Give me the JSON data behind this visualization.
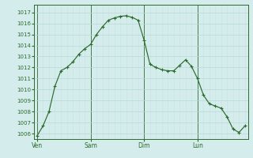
{
  "background_color": "#d4edec",
  "grid_major_color": "#b8d8d4",
  "grid_minor_color": "#c8e4e0",
  "line_color": "#2d6a2d",
  "marker_color": "#2d6a2d",
  "tick_color": "#2d6a2d",
  "spine_color": "#2d6a2d",
  "ylim": [
    1005.5,
    1017.7
  ],
  "ytick_labels": [
    "1006",
    "1007",
    "1008",
    "1009",
    "1010",
    "1011",
    "1012",
    "1013",
    "1014",
    "1015",
    "1016",
    "1017"
  ],
  "ytick_vals": [
    1006,
    1007,
    1008,
    1009,
    1010,
    1011,
    1012,
    1013,
    1014,
    1015,
    1016,
    1017
  ],
  "day_labels": [
    "Ven",
    "Sam",
    "Dim",
    "Lun"
  ],
  "x_values": [
    0,
    1,
    2,
    3,
    4,
    5,
    6,
    7,
    8,
    9,
    10,
    11,
    12,
    13,
    14,
    15,
    16,
    17,
    18,
    19,
    20,
    21,
    22,
    23,
    24,
    25,
    26,
    27,
    28,
    29,
    30,
    31,
    32,
    33,
    34,
    35
  ],
  "y_values": [
    1005.8,
    1006.7,
    1008.0,
    1010.3,
    1011.7,
    1012.0,
    1012.5,
    1013.2,
    1013.7,
    1014.1,
    1015.0,
    1015.7,
    1016.3,
    1016.5,
    1016.65,
    1016.7,
    1016.55,
    1016.3,
    1014.5,
    1012.3,
    1012.0,
    1011.8,
    1011.7,
    1011.7,
    1012.2,
    1012.7,
    1012.1,
    1011.0,
    1009.5,
    1008.7,
    1008.5,
    1008.3,
    1007.5,
    1006.4,
    1006.1,
    1006.7
  ],
  "n_points": 36,
  "points_per_day": 9,
  "n_days": 4
}
